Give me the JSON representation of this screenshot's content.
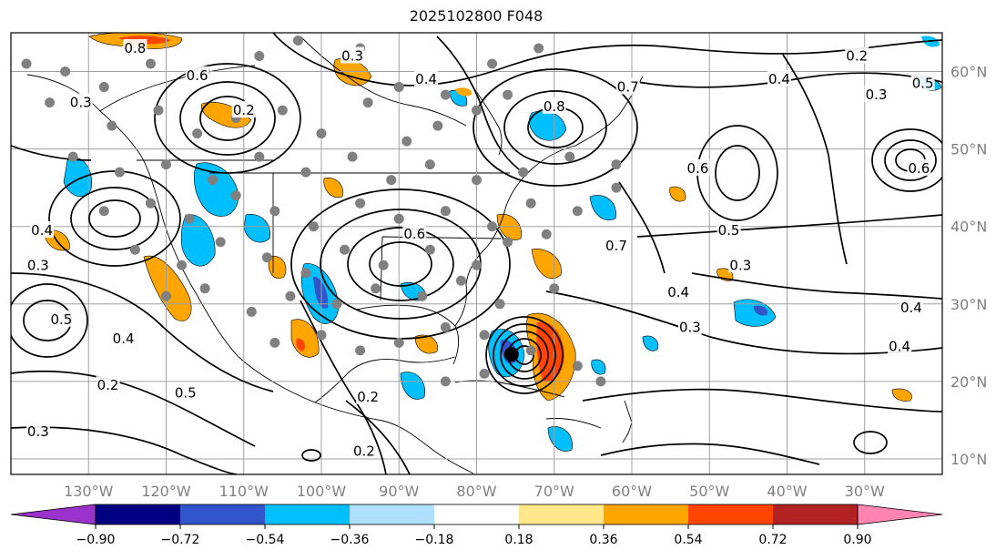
{
  "title": "2025102800 F048",
  "map": {
    "lon_range": [
      -140,
      -20
    ],
    "lat_range": [
      8,
      65
    ],
    "lon_ticks": [
      {
        "value": -130,
        "label": "130°W"
      },
      {
        "value": -120,
        "label": "120°W"
      },
      {
        "value": -110,
        "label": "110°W"
      },
      {
        "value": -100,
        "label": "100°W"
      },
      {
        "value": -90,
        "label": "90°W"
      },
      {
        "value": -80,
        "label": "80°W"
      },
      {
        "value": -70,
        "label": "70°W"
      },
      {
        "value": -60,
        "label": "60°W"
      },
      {
        "value": -50,
        "label": "50°W"
      },
      {
        "value": -40,
        "label": "40°W"
      },
      {
        "value": -30,
        "label": "30°W"
      }
    ],
    "lat_ticks": [
      {
        "value": 60,
        "label": "60°N"
      },
      {
        "value": 50,
        "label": "50°N"
      },
      {
        "value": 40,
        "label": "40°N"
      },
      {
        "value": 30,
        "label": "30°N"
      },
      {
        "value": 20,
        "label": "20°N"
      },
      {
        "value": 10,
        "label": "10°N"
      }
    ],
    "contour_labels": [
      {
        "text": "0.8",
        "lon": -124.0,
        "lat": 63.0
      },
      {
        "text": "0.6",
        "lon": -116.0,
        "lat": 59.5
      },
      {
        "text": "0.3",
        "lon": -131.0,
        "lat": 56.0
      },
      {
        "text": "0.2",
        "lon": -110.0,
        "lat": 55.0
      },
      {
        "text": "0.3",
        "lon": -96.0,
        "lat": 62.0
      },
      {
        "text": "0.4",
        "lon": -86.5,
        "lat": 59.0
      },
      {
        "text": "0.7",
        "lon": -60.5,
        "lat": 58.0
      },
      {
        "text": "0.8",
        "lon": -70.0,
        "lat": 55.5
      },
      {
        "text": "0.6",
        "lon": -51.5,
        "lat": 47.5
      },
      {
        "text": "0.4",
        "lon": -41.0,
        "lat": 59.0
      },
      {
        "text": "0.2",
        "lon": -31.0,
        "lat": 62.0
      },
      {
        "text": "0.3",
        "lon": -28.5,
        "lat": 57.0
      },
      {
        "text": "0.5",
        "lon": -22.5,
        "lat": 58.5
      },
      {
        "text": "0.4",
        "lon": -136.0,
        "lat": 39.5
      },
      {
        "text": "0.3",
        "lon": -136.5,
        "lat": 35.0
      },
      {
        "text": "0.5",
        "lon": -133.5,
        "lat": 28.0
      },
      {
        "text": "0.4",
        "lon": -125.5,
        "lat": 25.5
      },
      {
        "text": "0.2",
        "lon": -127.5,
        "lat": 19.5
      },
      {
        "text": "0.3",
        "lon": -136.5,
        "lat": 13.5
      },
      {
        "text": "0.6",
        "lon": -88.0,
        "lat": 39.0
      },
      {
        "text": "0.7",
        "lon": -62.0,
        "lat": 37.5
      },
      {
        "text": "0.5",
        "lon": -47.5,
        "lat": 39.5
      },
      {
        "text": "0.3",
        "lon": -46.0,
        "lat": 35.0
      },
      {
        "text": "0.4",
        "lon": -54.0,
        "lat": 31.5
      },
      {
        "text": "0.3",
        "lon": -52.5,
        "lat": 27.0
      },
      {
        "text": "0.4",
        "lon": -24.0,
        "lat": 29.5
      },
      {
        "text": "0.4",
        "lon": -25.5,
        "lat": 24.5
      },
      {
        "text": "0.2",
        "lon": -94.0,
        "lat": 18.0
      },
      {
        "text": "0.5",
        "lon": -117.5,
        "lat": 18.5
      },
      {
        "text": "0.2",
        "lon": -94.5,
        "lat": 11.0
      },
      {
        "text": "0.6",
        "lon": -23.0,
        "lat": 47.5
      }
    ],
    "hurricane_center": {
      "lon": -75.5,
      "lat": 23.5
    },
    "colors": {
      "contour": "#000000",
      "grid": "#a0a0a0",
      "coast": "#000000",
      "obs_dot": "#808080",
      "tick_label": "#808080"
    }
  },
  "colorbar": {
    "boundaries": [
      -1.08,
      -0.9,
      -0.72,
      -0.54,
      -0.36,
      -0.18,
      0.18,
      0.36,
      0.54,
      0.72,
      0.9,
      1.08
    ],
    "tick_labels": [
      "−0.90",
      "−0.72",
      "−0.54",
      "−0.36",
      "−0.18",
      "0.18",
      "0.36",
      "0.54",
      "0.72",
      "0.90"
    ],
    "colors": [
      "#9933cc",
      "#000080",
      "#3355cc",
      "#00bfff",
      "#b0e0ff",
      "#ffffff",
      "#ffe88a",
      "#ffa500",
      "#ff4500",
      "#b22222",
      "#ff85b0"
    ],
    "under_color": "#9933cc",
    "over_color": "#ff85b0"
  }
}
